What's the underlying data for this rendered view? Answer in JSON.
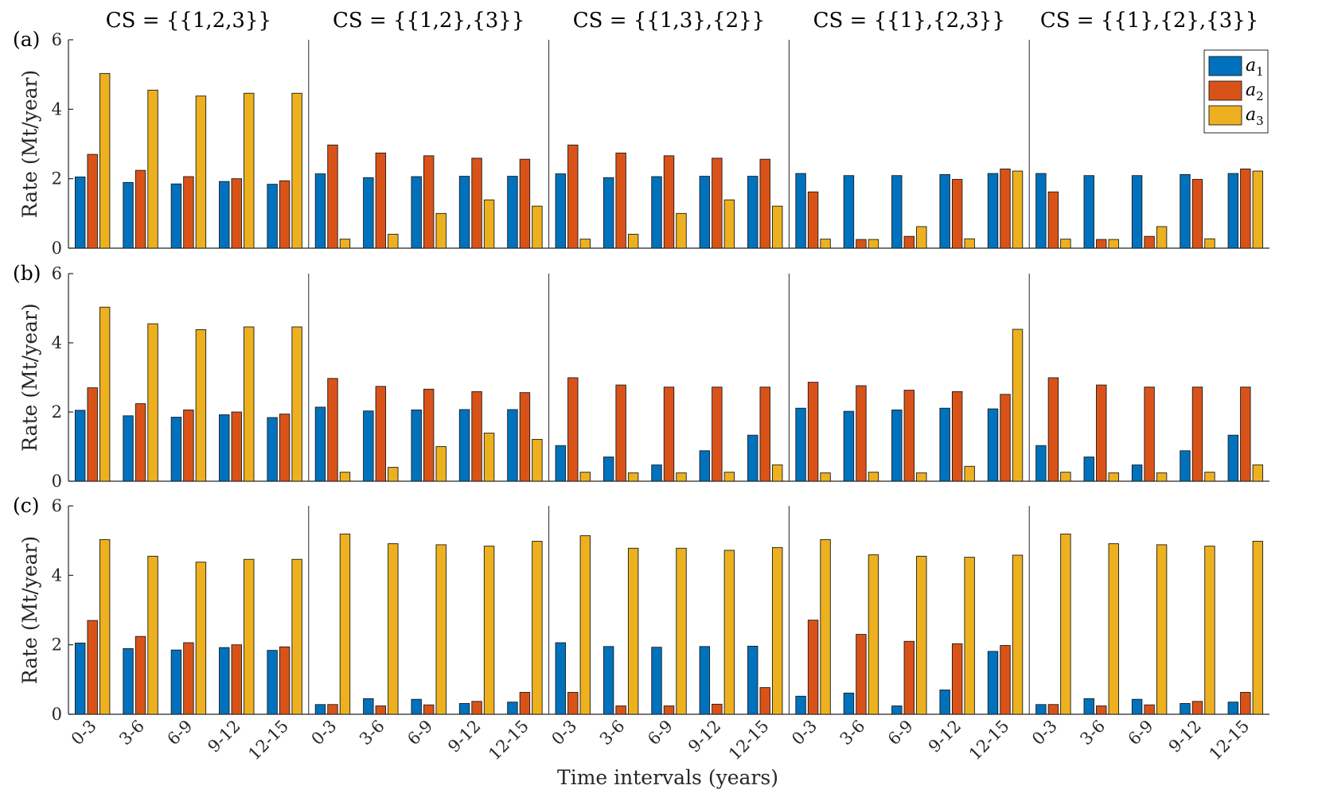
{
  "chart_data": {
    "type": "bar",
    "xlabel": "Time intervals (years)",
    "ylabel": "Rate (Mt/year)",
    "ylim": [
      0,
      6
    ],
    "yticks": [
      0,
      2,
      4,
      6
    ],
    "grid": false,
    "legend_position": "top-right",
    "coalition_structures": [
      "CS = {{1,2,3}}",
      "CS = {{1,2},{3}}",
      "CS = {{1,3},{2}}",
      "CS = {{1},{2,3}}",
      "CS = {{1},{2},{3}}"
    ],
    "categories": [
      "0-3",
      "3-6",
      "6-9",
      "9-12",
      "12-15"
    ],
    "series_names": [
      "a1",
      "a2",
      "a3"
    ],
    "series_labels": [
      {
        "base": "a",
        "sub": "1"
      },
      {
        "base": "a",
        "sub": "2"
      },
      {
        "base": "a",
        "sub": "3"
      }
    ],
    "colors": [
      "#0072BD",
      "#D95319",
      "#EDB120"
    ],
    "panels": [
      {
        "label": "(a)",
        "groups": [
          [
            [
              2.05,
              2.7,
              5.03
            ],
            [
              1.89,
              2.24,
              4.55
            ],
            [
              1.85,
              2.06,
              4.38
            ],
            [
              1.92,
              2.0,
              4.46
            ],
            [
              1.84,
              1.94,
              4.46
            ]
          ],
          [
            [
              2.14,
              2.97,
              0.26
            ],
            [
              2.03,
              2.74,
              0.4
            ],
            [
              2.06,
              2.66,
              1.0
            ],
            [
              2.07,
              2.59,
              1.39
            ],
            [
              2.07,
              2.56,
              1.21
            ]
          ],
          [
            [
              2.14,
              2.97,
              0.26
            ],
            [
              2.03,
              2.74,
              0.4
            ],
            [
              2.06,
              2.66,
              1.0
            ],
            [
              2.07,
              2.59,
              1.39
            ],
            [
              2.07,
              2.56,
              1.21
            ]
          ],
          [
            [
              2.15,
              1.62,
              0.26
            ],
            [
              2.09,
              0.25,
              0.25
            ],
            [
              2.09,
              0.34,
              0.62
            ],
            [
              2.12,
              1.98,
              0.27
            ],
            [
              2.15,
              2.28,
              2.22
            ]
          ],
          [
            [
              2.15,
              1.62,
              0.26
            ],
            [
              2.09,
              0.25,
              0.25
            ],
            [
              2.09,
              0.34,
              0.62
            ],
            [
              2.12,
              1.98,
              0.27
            ],
            [
              2.15,
              2.28,
              2.22
            ]
          ]
        ]
      },
      {
        "label": "(b)",
        "groups": [
          [
            [
              2.05,
              2.7,
              5.03
            ],
            [
              1.89,
              2.24,
              4.55
            ],
            [
              1.85,
              2.06,
              4.38
            ],
            [
              1.92,
              2.0,
              4.46
            ],
            [
              1.84,
              1.94,
              4.46
            ]
          ],
          [
            [
              2.14,
              2.97,
              0.26
            ],
            [
              2.03,
              2.74,
              0.4
            ],
            [
              2.06,
              2.66,
              1.0
            ],
            [
              2.07,
              2.59,
              1.39
            ],
            [
              2.07,
              2.56,
              1.21
            ]
          ],
          [
            [
              1.03,
              2.99,
              0.26
            ],
            [
              0.7,
              2.78,
              0.24
            ],
            [
              0.47,
              2.72,
              0.24
            ],
            [
              0.88,
              2.72,
              0.26
            ],
            [
              1.33,
              2.72,
              0.47
            ]
          ],
          [
            [
              2.11,
              2.86,
              0.24
            ],
            [
              2.02,
              2.76,
              0.26
            ],
            [
              2.06,
              2.63,
              0.24
            ],
            [
              2.11,
              2.59,
              0.43
            ],
            [
              2.09,
              2.51,
              4.39
            ]
          ],
          [
            [
              1.03,
              2.99,
              0.26
            ],
            [
              0.7,
              2.78,
              0.24
            ],
            [
              0.47,
              2.72,
              0.24
            ],
            [
              0.88,
              2.72,
              0.26
            ],
            [
              1.33,
              2.72,
              0.47
            ]
          ]
        ]
      },
      {
        "label": "(c)",
        "groups": [
          [
            [
              2.05,
              2.7,
              5.03
            ],
            [
              1.89,
              2.24,
              4.55
            ],
            [
              1.85,
              2.06,
              4.38
            ],
            [
              1.92,
              2.0,
              4.46
            ],
            [
              1.84,
              1.94,
              4.46
            ]
          ],
          [
            [
              0.28,
              0.28,
              5.19
            ],
            [
              0.45,
              0.24,
              4.91
            ],
            [
              0.43,
              0.27,
              4.88
            ],
            [
              0.31,
              0.37,
              4.84
            ],
            [
              0.35,
              0.63,
              4.98
            ]
          ],
          [
            [
              2.06,
              0.63,
              5.14
            ],
            [
              1.95,
              0.24,
              4.78
            ],
            [
              1.93,
              0.24,
              4.78
            ],
            [
              1.95,
              0.29,
              4.72
            ],
            [
              1.96,
              0.77,
              4.8
            ]
          ],
          [
            [
              0.52,
              2.71,
              5.03
            ],
            [
              0.61,
              2.3,
              4.59
            ],
            [
              0.24,
              2.1,
              4.55
            ],
            [
              0.7,
              2.03,
              4.52
            ],
            [
              1.81,
              1.98,
              4.58
            ]
          ],
          [
            [
              0.28,
              0.28,
              5.19
            ],
            [
              0.45,
              0.24,
              4.91
            ],
            [
              0.43,
              0.27,
              4.88
            ],
            [
              0.31,
              0.37,
              4.84
            ],
            [
              0.35,
              0.63,
              4.98
            ]
          ]
        ]
      }
    ]
  }
}
